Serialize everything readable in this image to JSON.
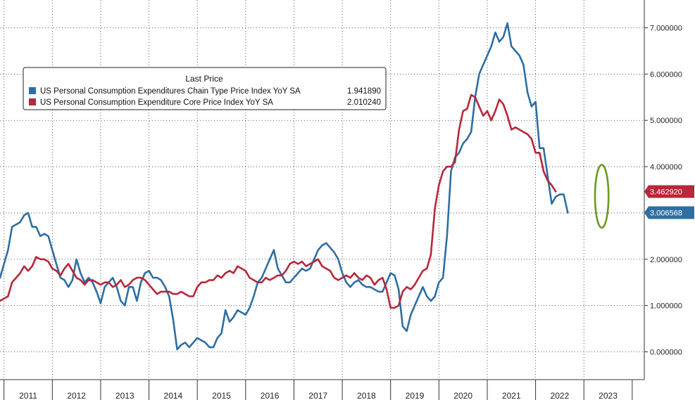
{
  "chart_data": {
    "type": "line",
    "legend": {
      "title": "Last Price",
      "placement": "top-left"
    },
    "yticks": [
      "7.000000",
      "6.000000",
      "5.000000",
      "4.000000",
      "3.000000",
      "2.000000",
      "1.000000",
      "0.000000"
    ],
    "ytick_values": [
      7,
      6,
      5,
      4,
      3,
      2,
      1,
      0
    ],
    "xticks": [
      "2011",
      "2012",
      "2013",
      "2014",
      "2015",
      "2016",
      "2017",
      "2018",
      "2019",
      "2020",
      "2021",
      "2022",
      "2023"
    ],
    "ylim": [
      -0.6,
      7.6
    ],
    "xlim": [
      2010.917,
      2024.25
    ],
    "grid": true,
    "highlight": {
      "shape": "ellipse",
      "color": "#6a9a1f",
      "x_center": 2023.37,
      "y_center": 3.36,
      "x_halfwidth": 0.14,
      "y_halfwidth": 0.68
    },
    "series": [
      {
        "name": "US Personal Consumption Expenditures Chain Type Price Index YoY SA",
        "last_value": "1.941890",
        "last_label": "3.006568",
        "color": "#2f6ea3",
        "start": "2010-10",
        "step": "month",
        "values": [
          1.3,
          1.5,
          1.6,
          1.9,
          2.2,
          2.7,
          2.75,
          2.8,
          2.95,
          3.0,
          2.7,
          2.7,
          2.5,
          2.55,
          2.5,
          2.2,
          1.9,
          1.6,
          1.55,
          1.4,
          1.55,
          2.0,
          1.7,
          1.5,
          1.6,
          1.5,
          1.3,
          1.05,
          1.4,
          1.5,
          1.6,
          1.4,
          1.1,
          1.0,
          1.4,
          1.4,
          1.1,
          1.5,
          1.7,
          1.75,
          1.6,
          1.6,
          1.55,
          1.4,
          1.2,
          0.7,
          0.05,
          0.15,
          0.2,
          0.1,
          0.2,
          0.3,
          0.25,
          0.2,
          0.1,
          0.1,
          0.3,
          0.4,
          0.9,
          0.65,
          0.75,
          0.9,
          0.85,
          0.8,
          0.95,
          1.2,
          1.5,
          1.6,
          1.8,
          2.0,
          2.2,
          1.8,
          1.65,
          1.5,
          1.5,
          1.6,
          1.7,
          1.8,
          1.75,
          1.8,
          2.0,
          2.2,
          2.3,
          2.35,
          2.25,
          2.15,
          2.0,
          1.7,
          1.5,
          1.4,
          1.5,
          1.55,
          1.45,
          1.4,
          1.4,
          1.35,
          1.3,
          1.3,
          1.5,
          1.7,
          1.65,
          1.35,
          0.55,
          0.45,
          0.8,
          1.0,
          1.2,
          1.4,
          1.2,
          1.1,
          1.2,
          1.5,
          1.6,
          2.5,
          3.9,
          4.2,
          4.3,
          4.5,
          4.6,
          4.75,
          5.5,
          6.0,
          6.2,
          6.4,
          6.6,
          6.9,
          6.7,
          6.8,
          7.1,
          6.6,
          6.5,
          6.4,
          6.2,
          5.6,
          5.3,
          5.4,
          4.4,
          4.4,
          3.8,
          3.2,
          3.35,
          3.4,
          3.4,
          3.006568
        ]
      },
      {
        "name": "US Personal Consumption Expenditure Core Price Index YoY SA",
        "last_value": "2.010240",
        "last_label": "3.462920",
        "color": "#b8273a",
        "start": "2010-10",
        "step": "month",
        "values": [
          1.15,
          1.05,
          1.1,
          1.15,
          1.2,
          1.5,
          1.6,
          1.7,
          1.85,
          1.75,
          1.85,
          2.05,
          2.0,
          2.0,
          1.95,
          1.8,
          1.75,
          1.65,
          1.8,
          1.9,
          1.75,
          1.6,
          1.55,
          1.45,
          1.55,
          1.55,
          1.5,
          1.45,
          1.5,
          1.5,
          1.4,
          1.45,
          1.55,
          1.4,
          1.45,
          1.55,
          1.6,
          1.6,
          1.55,
          1.45,
          1.35,
          1.25,
          1.3,
          1.3,
          1.3,
          1.25,
          1.25,
          1.3,
          1.25,
          1.2,
          1.2,
          1.4,
          1.5,
          1.5,
          1.55,
          1.55,
          1.65,
          1.6,
          1.7,
          1.75,
          1.7,
          1.85,
          1.8,
          1.75,
          1.6,
          1.55,
          1.5,
          1.5,
          1.6,
          1.55,
          1.6,
          1.65,
          1.65,
          1.75,
          1.9,
          1.95,
          1.9,
          1.95,
          1.85,
          1.9,
          1.95,
          2.0,
          1.85,
          1.8,
          1.75,
          1.6,
          1.55,
          1.6,
          1.65,
          1.6,
          1.7,
          1.6,
          1.55,
          1.65,
          1.6,
          1.45,
          1.55,
          1.6,
          1.35,
          0.95,
          0.95,
          1.0,
          1.3,
          1.4,
          1.35,
          1.45,
          1.6,
          1.75,
          1.8,
          2.1,
          3.1,
          3.6,
          3.9,
          4.0,
          4.0,
          4.1,
          4.8,
          5.2,
          5.25,
          5.55,
          5.5,
          5.3,
          5.1,
          5.2,
          5.0,
          5.2,
          5.45,
          5.35,
          5.1,
          4.8,
          4.85,
          4.8,
          4.75,
          4.7,
          4.6,
          4.3,
          4.3,
          3.9,
          3.7,
          3.6,
          3.46292
        ]
      }
    ]
  }
}
